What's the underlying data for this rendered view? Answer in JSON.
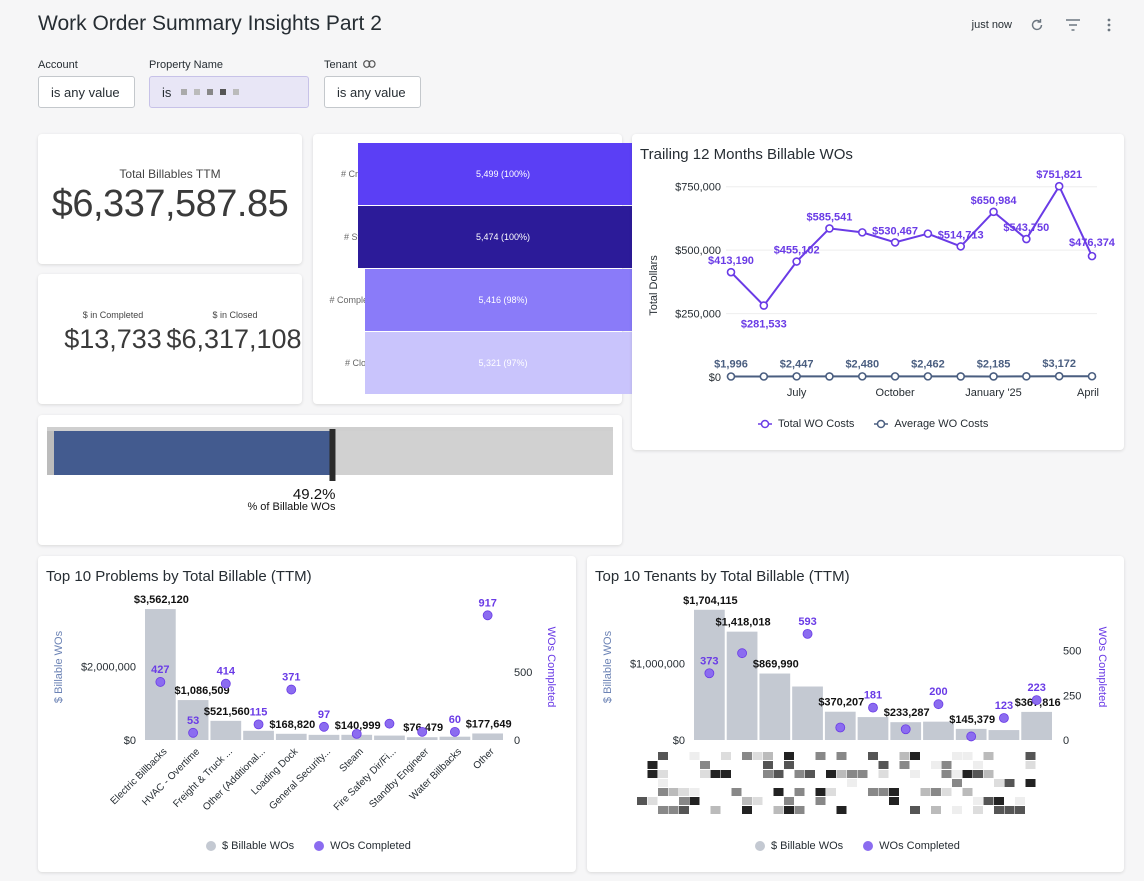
{
  "header": {
    "title": "Work Order Summary Insights Part 2",
    "refreshed": "just now",
    "refresh_icon": "refresh-icon",
    "filter_icon": "filter-icon",
    "more_icon": "more-vertical-icon"
  },
  "filters": {
    "account": {
      "label": "Account",
      "value": "is any value"
    },
    "property": {
      "label": "Property Name",
      "value": "is"
    },
    "tenant": {
      "label": "Tenant",
      "value": "is any value",
      "icon": "link-icon"
    }
  },
  "total_billables": {
    "label": "Total Billables TTM",
    "value": "$6,337,587.85"
  },
  "completed_closed": {
    "completed_label": "$ in Completed",
    "completed_value": "$13,733",
    "closed_label": "$ in Closed",
    "closed_value": "$6,317,108"
  },
  "funnel": [
    {
      "label": "# Created WOs",
      "value": "5,499 (100%)",
      "pct": 100,
      "color": "#5b3ff5"
    },
    {
      "label": "# Started WOs",
      "value": "5,474 (100%)",
      "pct": 100,
      "color": "#2c1b99"
    },
    {
      "label": "# Completed WOs",
      "value": "5,416 (98%)",
      "pct": 98,
      "color": "#8a7bf9"
    },
    {
      "label": "# Closed WOs",
      "value": "5,321 (97%)",
      "pct": 97,
      "color": "#c9c4fc"
    }
  ],
  "billable_pct": {
    "value": "49.2%",
    "label": "% of Billable WOs",
    "fraction": 0.492
  },
  "colors": {
    "primary": "#6a3be6",
    "secondary": "#4a5e80",
    "bar": "#c4c9d2",
    "bullet": "#435b8f"
  },
  "trailing": {
    "title": "Trailing 12 Months Billable WOs",
    "chart_data": {
      "type": "line",
      "ylabel": "Total Dollars",
      "yticks": [
        "$750,000",
        "$500,000",
        "$250,000",
        "$0"
      ],
      "ytick_values": [
        750000,
        500000,
        250000,
        0
      ],
      "ylim": [
        0,
        800000
      ],
      "xticks": [
        "July",
        "October",
        "January '25",
        "April"
      ],
      "xtick_index": [
        2,
        5,
        8,
        11
      ],
      "series": [
        {
          "name": "Total WO Costs",
          "values": [
            413190,
            281533,
            455102,
            585541,
            570000,
            530467,
            565000,
            514713,
            650984,
            543750,
            751821,
            476374
          ],
          "labels": [
            "$413,190",
            "$281,533",
            "$455,102",
            "$585,541",
            "",
            "$530,467",
            "",
            "$514,713",
            "$650,984",
            "$543,750",
            "$751,821",
            "$476,374"
          ]
        },
        {
          "name": "Average WO Costs",
          "values": [
            1996,
            2000,
            2447,
            2300,
            2480,
            2450,
            2462,
            2300,
            2185,
            2600,
            3172,
            3000
          ],
          "labels": [
            "$1,996",
            "",
            "$2,447",
            "",
            "$2,480",
            "",
            "$2,462",
            "",
            "$2,185",
            "",
            "$3,172",
            ""
          ]
        }
      ]
    }
  },
  "problems": {
    "title": "Top 10 Problems by Total Billable (TTM)",
    "chart_data": {
      "type": "bar",
      "ylabel_left": "$ Billable WOs",
      "ylabel_right": "WOs Completed",
      "left_ticks": [
        "$2,000,000",
        "$0"
      ],
      "left_tick_values": [
        2000000,
        0
      ],
      "left_max": 3700000,
      "right_ticks": [
        "500",
        "0"
      ],
      "right_tick_values": [
        500,
        0
      ],
      "right_max": 1000,
      "categories": [
        "Electric Billbacks",
        "HVAC - Overtime",
        "Freight & Truck ...",
        "Other (Additional...",
        "Loading Dock",
        "General Security...",
        "Steam",
        "Fire Safety Dir/Fi...",
        "Standby Engineer",
        "Water Billbacks",
        "Other"
      ],
      "series": [
        {
          "name": "$ Billable WOs",
          "values": [
            3562120,
            1086509,
            521560,
            250000,
            168820,
            140000,
            140999,
            120000,
            76479,
            90000,
            177649
          ],
          "labels": [
            "$3,562,120",
            "$1,086,509",
            "$521,560",
            "",
            "$168,820",
            "",
            "$140,999",
            "",
            "$76,479",
            "",
            "$177,649"
          ]
        },
        {
          "name": "WOs Completed",
          "values": [
            427,
            53,
            414,
            115,
            371,
            97,
            45,
            120,
            60,
            60,
            917
          ],
          "labels": [
            "427",
            "53",
            "414",
            "115",
            "371",
            "97",
            "",
            "",
            "",
            "60",
            "917"
          ]
        }
      ]
    }
  },
  "tenants": {
    "title": "Top 10 Tenants by Total Billable (TTM)",
    "chart_data": {
      "type": "bar",
      "ylabel_left": "$ Billable WOs",
      "ylabel_right": "WOs Completed",
      "left_ticks": [
        "$1,000,000",
        "$0"
      ],
      "left_tick_values": [
        1000000,
        0
      ],
      "left_max": 1780000,
      "right_ticks": [
        "500",
        "250",
        "0"
      ],
      "right_tick_values": [
        500,
        250,
        0
      ],
      "right_max": 760,
      "categories": [
        "",
        "",
        "",
        "",
        "",
        "",
        "",
        "",
        "",
        "",
        ""
      ],
      "series": [
        {
          "name": "$ Billable WOs",
          "values": [
            1704115,
            1418018,
            869990,
            700000,
            370207,
            300000,
            233287,
            240000,
            145379,
            130000,
            367816
          ],
          "labels": [
            "$1,704,115",
            "$1,418,018",
            "$869,990",
            "",
            "$370,207",
            "",
            "$233,287",
            "",
            "$145,379",
            "",
            "$367,816"
          ]
        },
        {
          "name": "WOs Completed",
          "values": [
            373,
            485,
            null,
            593,
            70,
            181,
            60,
            200,
            20,
            123,
            223
          ],
          "labels": [
            "373",
            "",
            "",
            "593",
            "",
            "181",
            "",
            "200",
            "",
            "123",
            "223"
          ]
        }
      ]
    }
  },
  "legends": {
    "billable": "$ Billable WOs",
    "completed": "WOs Completed"
  }
}
